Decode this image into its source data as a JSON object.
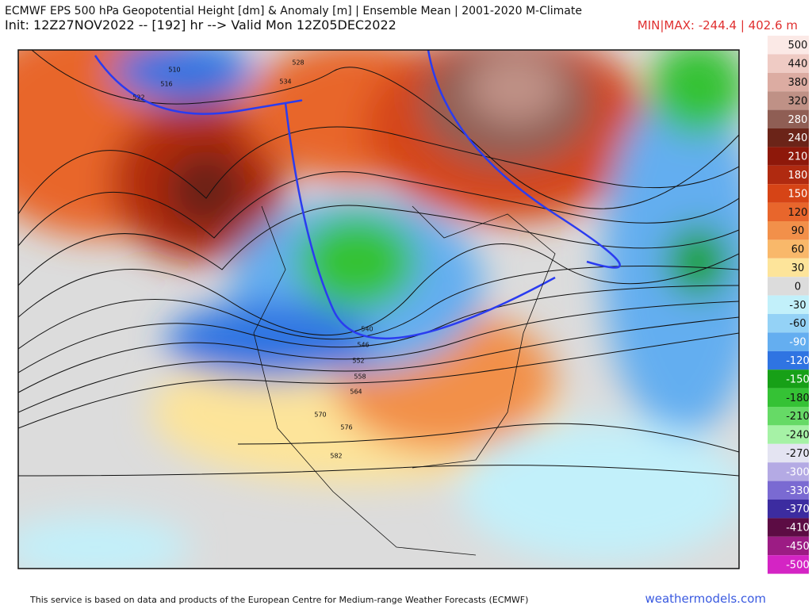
{
  "header": {
    "title": "ECMWF EPS 500 hPa Geopotential Height [dm] & Anomaly [m] | Ensemble Mean | 2001-2020 M-Climate",
    "subtitle": "Init: 12Z27NOV2022 -- [192] hr --> Valid Mon 12Z05DEC2022",
    "minmax": "MIN|MAX: -244.4 | 402.6 m"
  },
  "colorbar": {
    "levels": [
      500,
      440,
      380,
      320,
      280,
      240,
      210,
      180,
      150,
      120,
      90,
      60,
      30,
      0,
      -30,
      -60,
      -90,
      -120,
      -150,
      -180,
      -210,
      -240,
      -270,
      -300,
      -330,
      -370,
      -410,
      -450,
      -500
    ],
    "colors": [
      "#fbe9e6",
      "#efcbc4",
      "#dcaca2",
      "#bf9186",
      "#8f5e54",
      "#6b2418",
      "#8e180a",
      "#b02a10",
      "#d64416",
      "#e8662c",
      "#f2904a",
      "#f9b86a",
      "#fde49a",
      "#dcdcdc",
      "#c2f0fa",
      "#94d2f6",
      "#64aef0",
      "#2f74e2",
      "#17a017",
      "#35c235",
      "#66da66",
      "#a6f2a6",
      "#e4e4f2",
      "#b4aae4",
      "#7a6ad2",
      "#3c2ca0",
      "#5c0c44",
      "#9c1c84",
      "#d424c4"
    ]
  },
  "contour_labels": [
    510,
    516,
    522,
    528,
    534,
    540,
    546,
    552,
    558,
    564,
    570,
    576,
    582
  ],
  "footer": {
    "credit": "This service is based on data and products of the European Centre for Medium-range Weather Forecasts (ECMWF)",
    "site": "weathermodels.com"
  }
}
